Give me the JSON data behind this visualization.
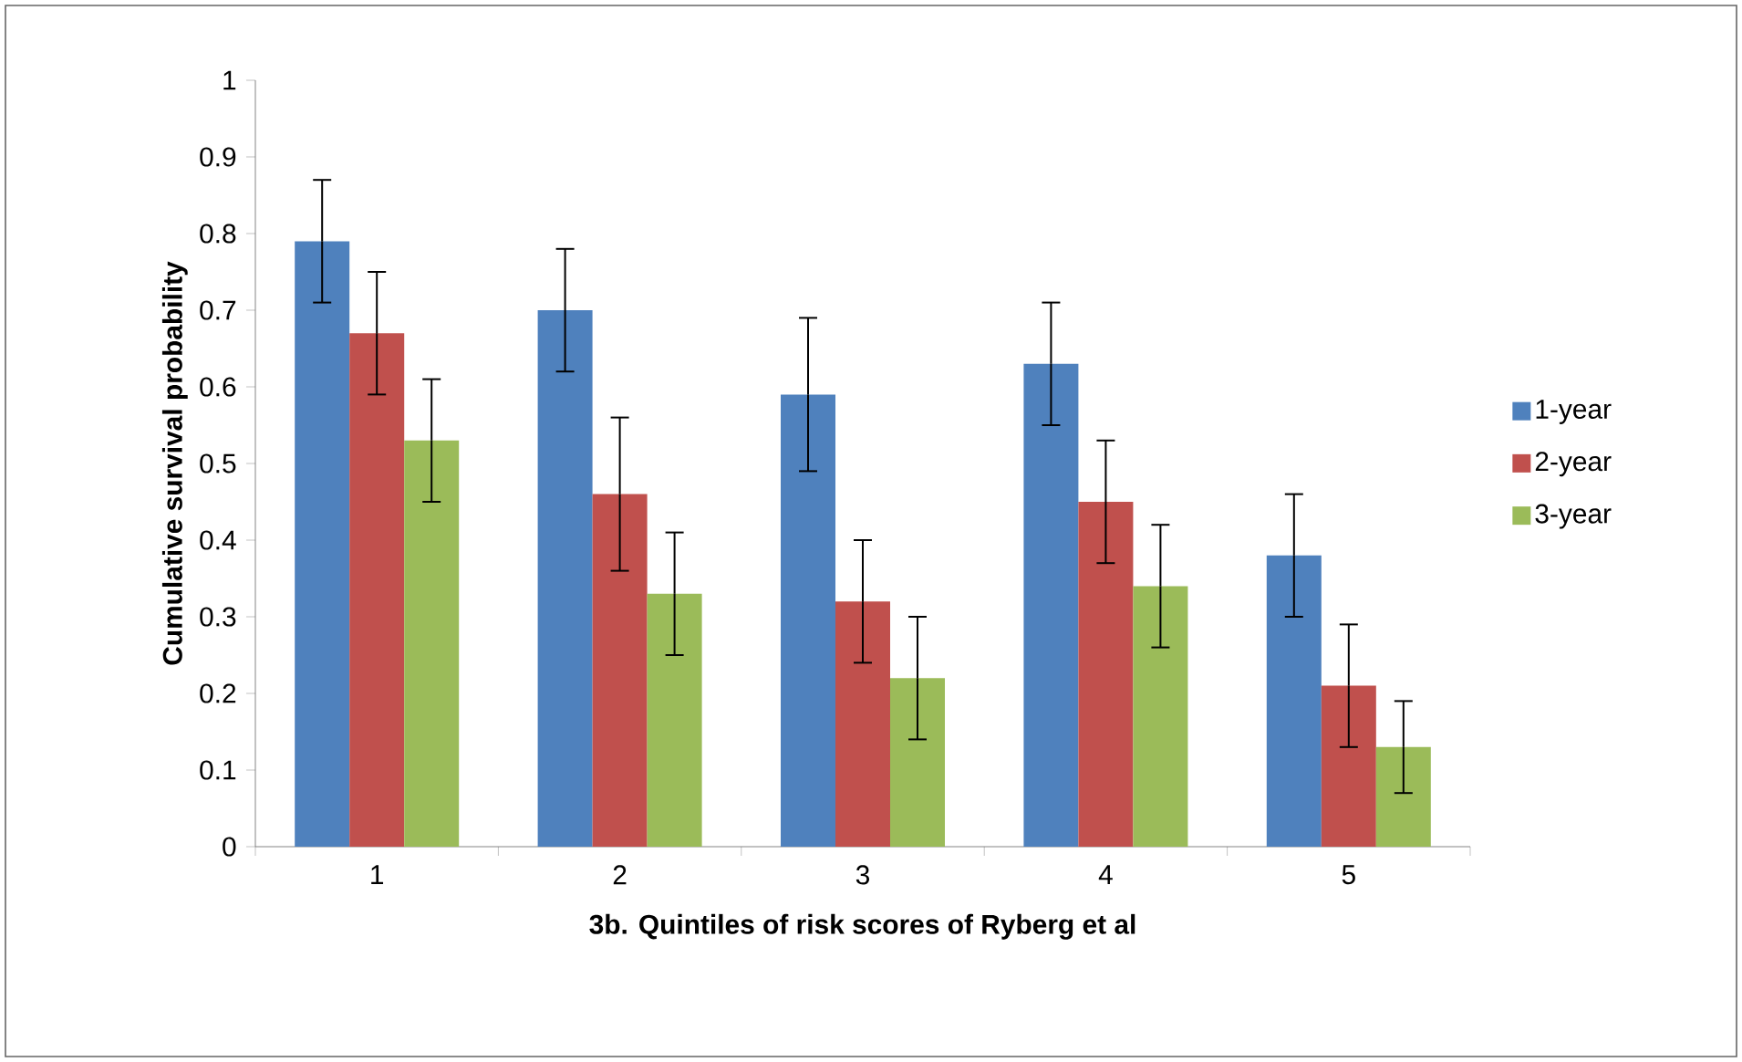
{
  "chart_data": {
    "type": "bar",
    "xlabel": "3b. Quintiles of risk scores of Ryberg et al",
    "ylabel": "Cumulative survival probability",
    "categories": [
      "1",
      "2",
      "3",
      "4",
      "5"
    ],
    "series": [
      {
        "name": "1-year",
        "color": "#4f81bd",
        "values": [
          0.79,
          0.7,
          0.59,
          0.63,
          0.38
        ],
        "errors": [
          [
            0.71,
            0.87
          ],
          [
            0.62,
            0.78
          ],
          [
            0.49,
            0.69
          ],
          [
            0.55,
            0.71
          ],
          [
            0.3,
            0.46
          ]
        ]
      },
      {
        "name": "2-year",
        "color": "#c0504d",
        "values": [
          0.67,
          0.46,
          0.32,
          0.45,
          0.21
        ],
        "errors": [
          [
            0.59,
            0.75
          ],
          [
            0.36,
            0.56
          ],
          [
            0.24,
            0.4
          ],
          [
            0.37,
            0.53
          ],
          [
            0.13,
            0.29
          ]
        ]
      },
      {
        "name": "3-year",
        "color": "#9bbb59",
        "values": [
          0.53,
          0.33,
          0.22,
          0.34,
          0.13
        ],
        "errors": [
          [
            0.45,
            0.61
          ],
          [
            0.25,
            0.41
          ],
          [
            0.14,
            0.3
          ],
          [
            0.26,
            0.42
          ],
          [
            0.07,
            0.19
          ]
        ]
      }
    ],
    "ylim": [
      0,
      1
    ],
    "yticks": [
      0,
      0.1,
      0.2,
      0.3,
      0.4,
      0.5,
      0.6,
      0.7,
      0.8,
      0.9,
      1
    ],
    "legend": "right",
    "grid": false
  }
}
